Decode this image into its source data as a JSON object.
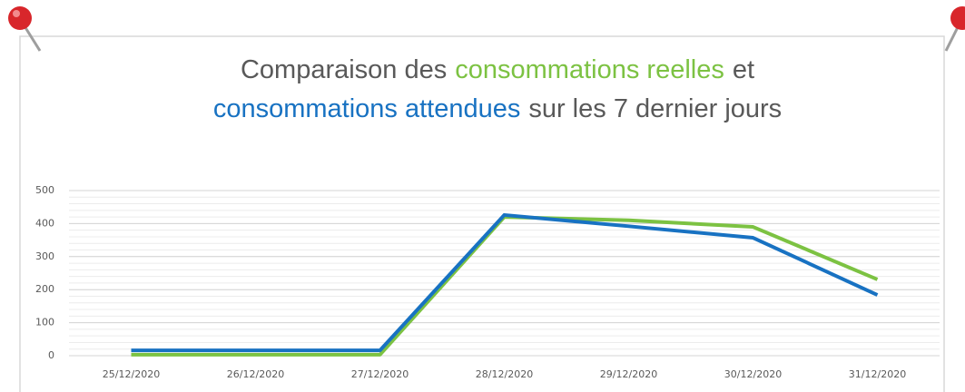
{
  "chart_data": {
    "type": "line",
    "title_parts": [
      "Comparaison des",
      "et",
      "sur les 7 dernier jours"
    ],
    "categories": [
      "25/12/2020",
      "26/12/2020",
      "27/12/2020",
      "28/12/2020",
      "29/12/2020",
      "30/12/2020",
      "31/12/2020"
    ],
    "series": [
      {
        "name": "consommations reelles",
        "color": "#7cc242",
        "values": [
          3,
          3,
          3,
          420,
          410,
          390,
          231
        ]
      },
      {
        "name": "consommations attendues",
        "color": "#1872c2",
        "values": [
          16,
          16,
          16,
          426,
          392,
          357,
          184
        ]
      }
    ],
    "ylim": [
      0,
      500
    ],
    "yticks": [
      0,
      100,
      200,
      300,
      400,
      500
    ],
    "grid": true
  }
}
